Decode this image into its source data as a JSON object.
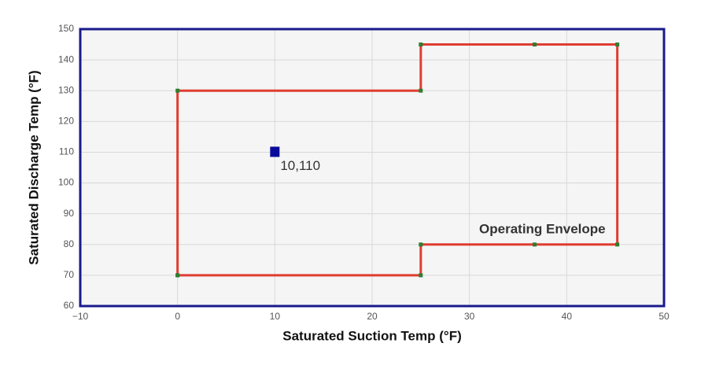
{
  "chart_data": {
    "type": "scatter",
    "xlabel": "Saturated Suction Temp (°F)",
    "ylabel": "Saturated Discharge Temp (°F)",
    "xlim": [
      -10,
      50
    ],
    "ylim": [
      60,
      150
    ],
    "xticks": [
      {
        "value": -10,
        "label": "−10"
      },
      0,
      10,
      20,
      30,
      40,
      50
    ],
    "yticks": [
      60,
      70,
      80,
      90,
      100,
      110,
      120,
      130,
      140,
      150
    ],
    "grid": true,
    "series": [
      {
        "name": "Operating Envelope",
        "color": "#e03c31",
        "marker_color": "#2e7d32",
        "line": true,
        "x": [
          0,
          0,
          25,
          25,
          36.7,
          45.2,
          45.2,
          36.7,
          25,
          25,
          0
        ],
        "values": [
          70,
          130,
          130,
          145,
          145,
          145,
          80,
          80,
          80,
          70,
          70
        ]
      },
      {
        "color": "#0a0a9a",
        "line": false,
        "x": [
          10
        ],
        "values": [
          110
        ],
        "value_labels": [
          "10,110"
        ]
      }
    ]
  }
}
